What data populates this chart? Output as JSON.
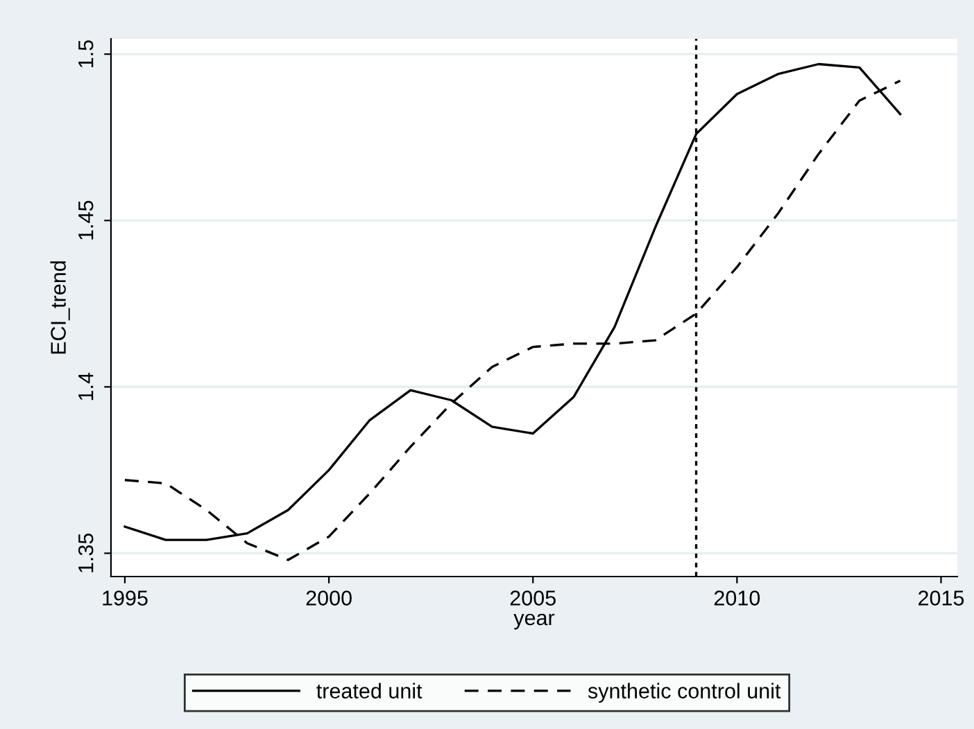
{
  "chart_data": {
    "type": "line",
    "xlabel": "year",
    "ylabel": "ECI_trend",
    "x": [
      1995,
      1996,
      1997,
      1998,
      1999,
      2000,
      2001,
      2002,
      2003,
      2004,
      2005,
      2006,
      2007,
      2008,
      2009,
      2010,
      2011,
      2012,
      2013,
      2014
    ],
    "series": [
      {
        "name": "treated unit",
        "color": "#000000",
        "line_style": "solid",
        "values": [
          1.358,
          1.354,
          1.354,
          1.356,
          1.363,
          1.375,
          1.39,
          1.399,
          1.396,
          1.388,
          1.386,
          1.397,
          1.418,
          1.448,
          1.476,
          1.488,
          1.494,
          1.497,
          1.496,
          1.482
        ]
      },
      {
        "name": "synthetic control unit",
        "color": "#000000",
        "line_style": "dashed",
        "values": [
          1.372,
          1.371,
          1.363,
          1.353,
          1.348,
          1.355,
          1.368,
          1.382,
          1.395,
          1.406,
          1.412,
          1.413,
          1.413,
          1.414,
          1.422,
          1.436,
          1.452,
          1.47,
          1.486,
          1.492
        ]
      }
    ],
    "xlim": [
      1994.66,
      2015.4
    ],
    "xticks": [
      1995,
      2000,
      2005,
      2010,
      2015
    ],
    "ylim": [
      1.343,
      1.5046
    ],
    "yticks": [
      1.35,
      1.4,
      1.45,
      1.5
    ],
    "ref_lines": [
      {
        "axis": "x",
        "value": 2009,
        "color": "#000000",
        "line_style": "dotted"
      }
    ],
    "grid": "y",
    "legend": "bottom",
    "marker": "none"
  }
}
